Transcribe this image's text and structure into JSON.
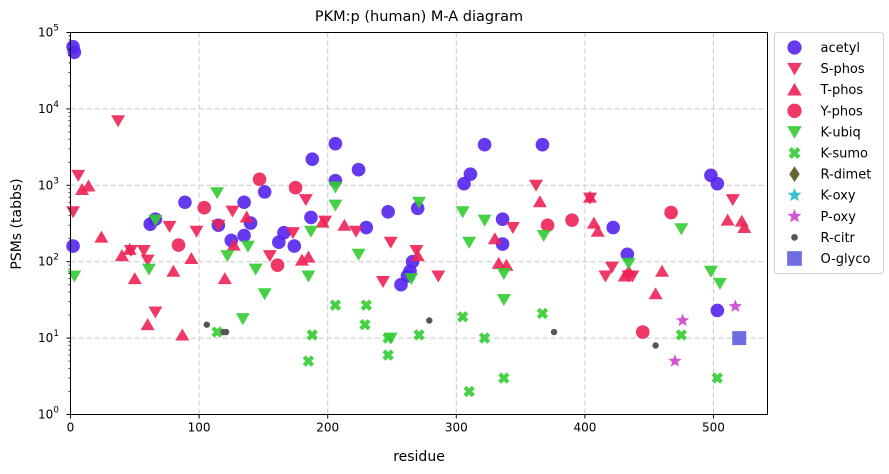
{
  "chart_data": {
    "type": "scatter",
    "title": "PKM:p (human) M-A diagram",
    "xlabel": "residue",
    "ylabel": "PSMs (tabbs)",
    "xlim": [
      0,
      542
    ],
    "ylim": [
      1,
      100000
    ],
    "yscale": "log",
    "x_ticks": [
      0,
      100,
      200,
      300,
      400,
      500
    ],
    "y_ticks": [
      {
        "value": 1,
        "base": "10",
        "exp": "0"
      },
      {
        "value": 10,
        "base": "10",
        "exp": "1"
      },
      {
        "value": 100,
        "base": "10",
        "exp": "2"
      },
      {
        "value": 1000,
        "base": "10",
        "exp": "3"
      },
      {
        "value": 10000,
        "base": "10",
        "exp": "4"
      },
      {
        "value": 100000,
        "base": "10",
        "exp": "5"
      }
    ],
    "grid": true,
    "legend_position": "outside-right",
    "series": [
      {
        "name": "acetyl",
        "marker": "circle",
        "color": "#5522ee",
        "points": [
          [
            2,
            160
          ],
          [
            2,
            65000
          ],
          [
            3,
            55000
          ],
          [
            62,
            310
          ],
          [
            66,
            360
          ],
          [
            89,
            600
          ],
          [
            115,
            300
          ],
          [
            125,
            190
          ],
          [
            135,
            220
          ],
          [
            135,
            600
          ],
          [
            140,
            320
          ],
          [
            151,
            820
          ],
          [
            162,
            180
          ],
          [
            166,
            240
          ],
          [
            174,
            160
          ],
          [
            187,
            380
          ],
          [
            188,
            2200
          ],
          [
            206,
            3500
          ],
          [
            206,
            1150
          ],
          [
            224,
            1600
          ],
          [
            230,
            280
          ],
          [
            247,
            450
          ],
          [
            257,
            50
          ],
          [
            262,
            65
          ],
          [
            264,
            75
          ],
          [
            266,
            100
          ],
          [
            270,
            500
          ],
          [
            306,
            1050
          ],
          [
            311,
            1400
          ],
          [
            322,
            3400
          ],
          [
            336,
            170
          ],
          [
            336,
            360
          ],
          [
            367,
            3400
          ],
          [
            422,
            280
          ],
          [
            433,
            125
          ],
          [
            498,
            1350
          ],
          [
            503,
            1050
          ],
          [
            503,
            23
          ]
        ]
      },
      {
        "name": "S-phos",
        "marker": "triangle-down",
        "color": "#ee2255",
        "points": [
          [
            2,
            450
          ],
          [
            6,
            1350
          ],
          [
            37,
            7000
          ],
          [
            47,
            140
          ],
          [
            57,
            140
          ],
          [
            60,
            105
          ],
          [
            66,
            22
          ],
          [
            77,
            290
          ],
          [
            98,
            250
          ],
          [
            115,
            300
          ],
          [
            126,
            460
          ],
          [
            155,
            120
          ],
          [
            173,
            240
          ],
          [
            183,
            650
          ],
          [
            198,
            340
          ],
          [
            222,
            250
          ],
          [
            243,
            55
          ],
          [
            249,
            180
          ],
          [
            269,
            140
          ],
          [
            286,
            65
          ],
          [
            344,
            280
          ],
          [
            362,
            1000
          ],
          [
            404,
            680
          ],
          [
            416,
            65
          ],
          [
            421,
            85
          ],
          [
            434,
            65
          ],
          [
            437,
            65
          ],
          [
            515,
            650
          ]
        ]
      },
      {
        "name": "T-phos",
        "marker": "triangle-up",
        "color": "#ee2255",
        "points": [
          [
            9,
            880
          ],
          [
            14,
            980
          ],
          [
            24,
            210
          ],
          [
            40,
            120
          ],
          [
            46,
            145
          ],
          [
            50,
            60
          ],
          [
            60,
            15
          ],
          [
            80,
            75
          ],
          [
            87,
            11
          ],
          [
            94,
            110
          ],
          [
            120,
            60
          ],
          [
            127,
            165
          ],
          [
            137,
            385
          ],
          [
            180,
            105
          ],
          [
            185,
            115
          ],
          [
            196,
            330
          ],
          [
            213,
            300
          ],
          [
            270,
            120
          ],
          [
            333,
            95
          ],
          [
            330,
            200
          ],
          [
            339,
            90
          ],
          [
            365,
            610
          ],
          [
            404,
            700
          ],
          [
            407,
            320
          ],
          [
            410,
            250
          ],
          [
            431,
            65
          ],
          [
            434,
            75
          ],
          [
            455,
            38
          ],
          [
            460,
            75
          ],
          [
            511,
            350
          ],
          [
            522,
            340
          ],
          [
            524,
            280
          ]
        ]
      },
      {
        "name": "Y-phos",
        "marker": "circle",
        "color": "#ee2255",
        "points": [
          [
            84,
            165
          ],
          [
            104,
            510
          ],
          [
            147,
            1200
          ],
          [
            161,
            90
          ],
          [
            175,
            930
          ],
          [
            371,
            300
          ],
          [
            390,
            350
          ],
          [
            445,
            12
          ],
          [
            467,
            440
          ]
        ]
      },
      {
        "name": "K-ubiq",
        "marker": "triangle-down",
        "color": "#33cc33",
        "points": [
          [
            3,
            65
          ],
          [
            66,
            350
          ],
          [
            61,
            80
          ],
          [
            114,
            800
          ],
          [
            122,
            120
          ],
          [
            134,
            18
          ],
          [
            138,
            160
          ],
          [
            144,
            80
          ],
          [
            151,
            38
          ],
          [
            185,
            65
          ],
          [
            187,
            250
          ],
          [
            206,
            950
          ],
          [
            206,
            550
          ],
          [
            224,
            125
          ],
          [
            249,
            10
          ],
          [
            265,
            60
          ],
          [
            271,
            600
          ],
          [
            305,
            450
          ],
          [
            310,
            180
          ],
          [
            322,
            350
          ],
          [
            337,
            70
          ],
          [
            337,
            32
          ],
          [
            368,
            220
          ],
          [
            434,
            95
          ],
          [
            475,
            270
          ],
          [
            498,
            75
          ],
          [
            505,
            52
          ]
        ]
      },
      {
        "name": "K-sumo",
        "marker": "x",
        "color": "#33cc33",
        "points": [
          [
            114,
            12
          ],
          [
            185,
            5
          ],
          [
            188,
            11
          ],
          [
            206,
            27
          ],
          [
            229,
            15
          ],
          [
            230,
            27
          ],
          [
            247,
            6
          ],
          [
            247,
            10
          ],
          [
            271,
            11
          ],
          [
            305,
            19
          ],
          [
            310,
            2
          ],
          [
            322,
            10
          ],
          [
            337,
            3
          ],
          [
            367,
            21
          ],
          [
            475,
            11
          ],
          [
            503,
            3
          ]
        ]
      },
      {
        "name": "R-dimet",
        "marker": "diamond",
        "color": "#666633",
        "points": []
      },
      {
        "name": "K-oxy",
        "marker": "star",
        "color": "#22bbcc",
        "points": []
      },
      {
        "name": "P-oxy",
        "marker": "star",
        "color": "#cc44cc",
        "points": [
          [
            470,
            5
          ],
          [
            476,
            17
          ],
          [
            517,
            26
          ]
        ]
      },
      {
        "name": "R-citr",
        "marker": "dot",
        "color": "#555555",
        "points": [
          [
            106,
            15
          ],
          [
            119,
            12
          ],
          [
            121,
            12
          ],
          [
            279,
            17
          ],
          [
            376,
            12
          ],
          [
            455,
            8
          ]
        ]
      },
      {
        "name": "O-glyco",
        "marker": "square",
        "color": "#5555dd",
        "points": [
          [
            520,
            10
          ]
        ]
      }
    ]
  }
}
